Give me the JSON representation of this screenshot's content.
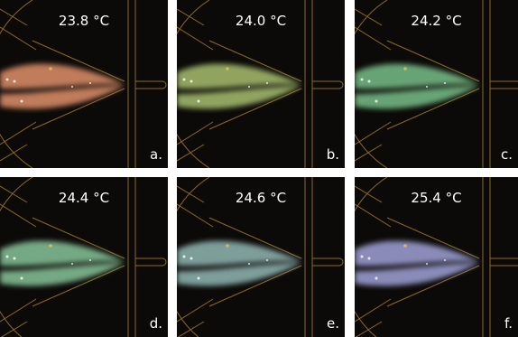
{
  "panels": [
    {
      "temperature": "23.8 °C",
      "label": "a.",
      "color": "#e0906a"
    },
    {
      "temperature": "24.0 °C",
      "label": "b.",
      "color": "#a8c070"
    },
    {
      "temperature": "24.2 °C",
      "label": "c.",
      "color": "#78c088"
    },
    {
      "temperature": "24.4 °C",
      "label": "d.",
      "color": "#88c49a"
    },
    {
      "temperature": "24.6 °C",
      "label": "e.",
      "color": "#92b8b4"
    },
    {
      "temperature": "25.4 °C",
      "label": "f.",
      "color": "#a0a2d8"
    }
  ]
}
